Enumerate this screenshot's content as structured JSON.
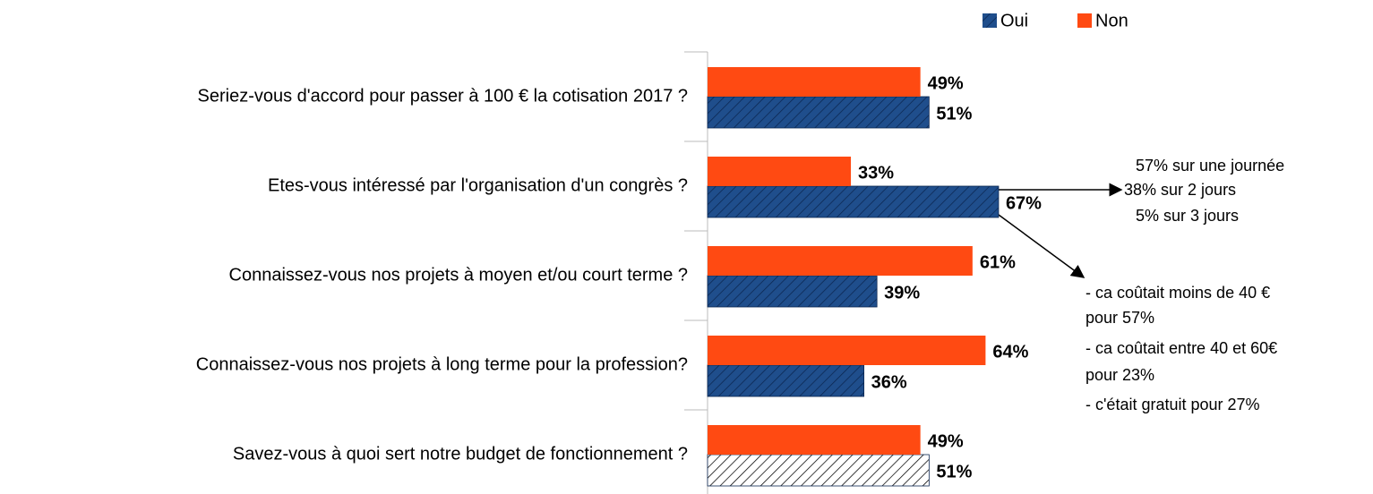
{
  "chart_data": {
    "type": "bar",
    "orientation": "horizontal",
    "categories": [
      "Seriez-vous d'accord pour passer à 100 € la cotisation 2017 ?",
      "Etes-vous intéressé par l'organisation d'un congrès ?",
      "Connaissez-vous nos projets à moyen et/ou court terme ?",
      "Connaissez-vous nos projets à long terme pour la profession?",
      "Savez-vous à quoi sert notre budget de fonctionnement ?"
    ],
    "series": [
      {
        "name": "Oui",
        "color": "#1f4e8c",
        "colors": [
          "#1f4e8c",
          "#1f4e8c",
          "#1f4e8c",
          "#1f4e8c",
          "#ffffff"
        ],
        "hatch": true,
        "values": [
          51,
          67,
          39,
          36,
          51
        ],
        "value_labels": [
          "51%",
          "67%",
          "39%",
          "36%",
          "51%"
        ]
      },
      {
        "name": "Non",
        "color": "#ff4a12",
        "hatch": false,
        "values": [
          49,
          33,
          61,
          64,
          49
        ],
        "value_labels": [
          "49%",
          "33%",
          "61%",
          "64%",
          "49%"
        ]
      }
    ],
    "xlim": [
      0,
      100
    ],
    "legend": "top-right",
    "annotations": [
      [
        "57% sur une journée",
        "38% sur 2 jours",
        "5% sur 3 jours"
      ],
      [
        "- ca coûtait moins de 40 €",
        "pour 57%",
        "- ca coûtait entre 40 et 60€",
        "pour 23%",
        "- c'était gratuit pour 27%"
      ]
    ]
  }
}
